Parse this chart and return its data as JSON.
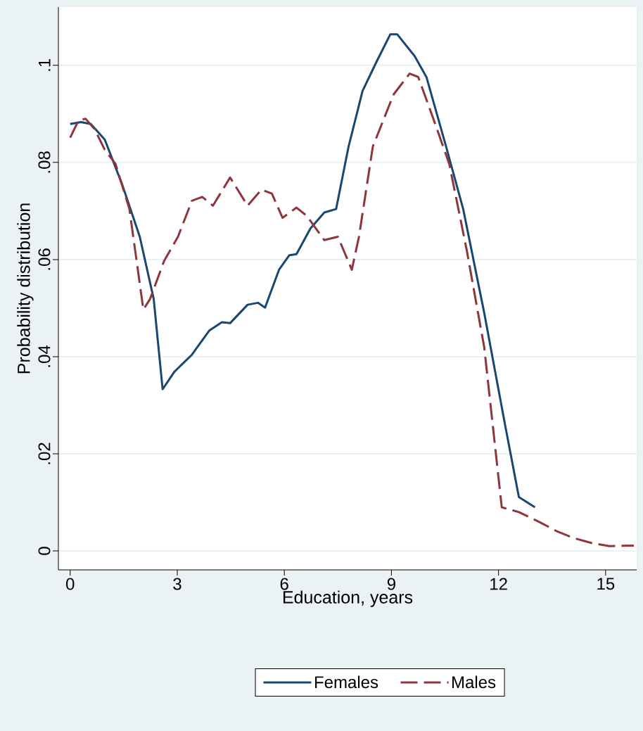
{
  "chart_data": {
    "type": "line",
    "xlabel": "Education, years",
    "ylabel": "Probability distribution",
    "xlim": [
      -0.33,
      15.87
    ],
    "ylim": [
      -0.0039,
      0.112
    ],
    "xticks": [
      0,
      3,
      6,
      9,
      12,
      15
    ],
    "yticks": [
      0,
      {
        "value": 0.02,
        "label": ".02"
      },
      {
        "value": 0.04,
        "label": ".04"
      },
      {
        "value": 0.06,
        "label": ".06"
      },
      {
        "value": 0.08,
        "label": ".08"
      },
      {
        "value": 0.1,
        "label": ".1"
      }
    ],
    "grid": "y",
    "legend": "bottom",
    "marker": "none",
    "series": [
      {
        "name": "Females",
        "color": "#1a476f",
        "line_style": "solid",
        "x": [
          0,
          0.3,
          0.58,
          0.97,
          1.46,
          1.95,
          2.34,
          2.59,
          2.92,
          3.41,
          3.9,
          4.25,
          4.48,
          4.97,
          5.26,
          5.46,
          5.85,
          6.14,
          6.34,
          6.73,
          7.12,
          7.45,
          7.8,
          8.19,
          8.58,
          8.97,
          9.16,
          9.65,
          9.98,
          10.53,
          11.01,
          11.6,
          12.18,
          12.57,
          13.02
        ],
        "values": [
          0.0879,
          0.0883,
          0.0879,
          0.0847,
          0.0754,
          0.0647,
          0.0519,
          0.0333,
          0.0369,
          0.0404,
          0.0454,
          0.0471,
          0.0469,
          0.0507,
          0.0511,
          0.0501,
          0.0579,
          0.0609,
          0.0611,
          0.0664,
          0.0697,
          0.0704,
          0.0833,
          0.0947,
          0.1007,
          0.1064,
          0.1064,
          0.1019,
          0.0976,
          0.0833,
          0.0704,
          0.049,
          0.0261,
          0.0111,
          0.009
        ]
      },
      {
        "name": "Males",
        "color": "#90353b",
        "line_style": "dashed",
        "x": [
          0,
          0.23,
          0.43,
          0.68,
          0.97,
          1.27,
          1.66,
          2.05,
          2.24,
          2.63,
          3.02,
          3.41,
          3.7,
          4.0,
          4.48,
          4.97,
          5.36,
          5.65,
          5.95,
          6.34,
          6.63,
          7.12,
          7.5,
          7.89,
          8.09,
          8.48,
          9.06,
          9.51,
          9.75,
          10.14,
          10.62,
          11.11,
          11.6,
          12.09,
          12.57,
          13.16,
          13.65,
          14.13,
          14.62,
          15.11,
          15.79
        ],
        "values": [
          0.0851,
          0.0886,
          0.089,
          0.0869,
          0.0826,
          0.0797,
          0.0704,
          0.0497,
          0.0519,
          0.0597,
          0.0647,
          0.0721,
          0.0729,
          0.0711,
          0.0769,
          0.0711,
          0.0744,
          0.0736,
          0.0686,
          0.0707,
          0.069,
          0.064,
          0.0647,
          0.0579,
          0.0647,
          0.0833,
          0.094,
          0.0983,
          0.0976,
          0.0897,
          0.0797,
          0.0619,
          0.0419,
          0.009,
          0.008,
          0.0059,
          0.004,
          0.0026,
          0.0016,
          0.001,
          0.0011
        ]
      }
    ]
  }
}
